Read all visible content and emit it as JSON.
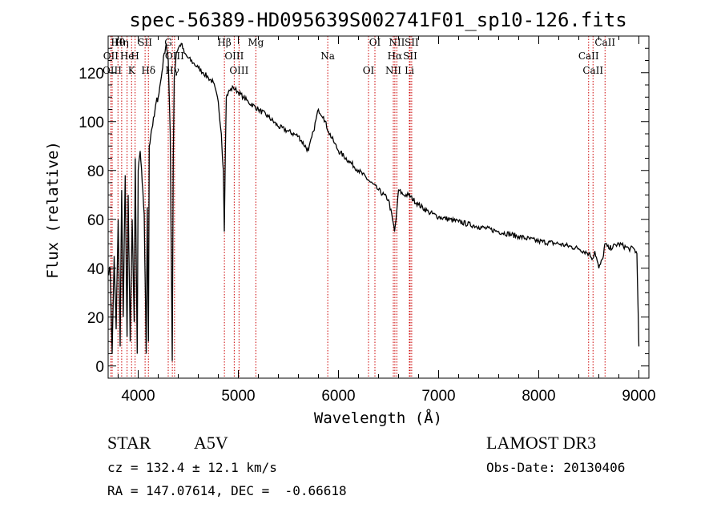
{
  "chart_data": {
    "type": "line",
    "title": "spec-56389-HD095639S002741F01_sp10-126.fits",
    "xlabel": "Wavelength (Å)",
    "ylabel": "Flux (relative)",
    "xlim": [
      3700,
      9100
    ],
    "ylim": [
      -5,
      135
    ],
    "xticks": [
      4000,
      5000,
      6000,
      7000,
      8000,
      9000
    ],
    "yticks": [
      0,
      20,
      40,
      60,
      80,
      100,
      120
    ],
    "grid": false,
    "series": [
      {
        "x": [
          3700,
          3720,
          3740,
          3760,
          3780,
          3800,
          3820,
          3835,
          3850,
          3870,
          3889,
          3900,
          3920,
          3940,
          3960,
          3970,
          3990,
          4000,
          4020,
          4040,
          4060,
          4080,
          4090,
          4102,
          4110,
          4130,
          4160,
          4180,
          4200,
          4230,
          4260,
          4280,
          4300,
          4320,
          4340,
          4350,
          4360,
          4380,
          4400,
          4430,
          4460,
          4500,
          4550,
          4600,
          4650,
          4700,
          4750,
          4800,
          4830,
          4850,
          4860,
          4870,
          4880,
          4900,
          4950,
          5000,
          5050,
          5100,
          5200,
          5300,
          5400,
          5500,
          5600,
          5700,
          5750,
          5800,
          5850,
          5900,
          5950,
          6000,
          6100,
          6200,
          6300,
          6400,
          6500,
          6540,
          6560,
          6575,
          6600,
          6650,
          6700,
          6800,
          6900,
          7000,
          7200,
          7400,
          7600,
          7800,
          8000,
          8200,
          8400,
          8500,
          8540,
          8560,
          8600,
          8640,
          8660,
          8700,
          8800,
          8900,
          8950,
          8980,
          9000
        ],
        "values": [
          38,
          40,
          5,
          45,
          15,
          60,
          8,
          72,
          20,
          78,
          12,
          70,
          10,
          60,
          18,
          85,
          5,
          80,
          88,
          75,
          62,
          5,
          65,
          10,
          90,
          96,
          102,
          108,
          110,
          118,
          128,
          132,
          125,
          95,
          2,
          85,
          118,
          128,
          130,
          132,
          128,
          126,
          124,
          122,
          120,
          118,
          116,
          108,
          95,
          80,
          55,
          88,
          110,
          112,
          114,
          112,
          110,
          108,
          105,
          102,
          98,
          96,
          94,
          88,
          96,
          105,
          102,
          96,
          92,
          88,
          84,
          80,
          76,
          72,
          68,
          60,
          55,
          60,
          72,
          70,
          70,
          66,
          63,
          61,
          59,
          57,
          55,
          53,
          51,
          50,
          48,
          46,
          44,
          47,
          40,
          44,
          50,
          48,
          50,
          48,
          48,
          46,
          8
        ]
      }
    ],
    "line_ids": [
      {
        "label": "Hθ",
        "x": 3798
      },
      {
        "label": "OII",
        "x": 3727
      },
      {
        "label": "OIII",
        "x": 3740
      },
      {
        "label": "Hη",
        "x": 3835
      },
      {
        "label": "He",
        "x": 3889
      },
      {
        "label": "K",
        "x": 3934
      },
      {
        "label": "SII",
        "x": 4069
      },
      {
        "label": "H",
        "x": 3969
      },
      {
        "label": "Hδ",
        "x": 4102
      },
      {
        "label": "G",
        "x": 4300
      },
      {
        "label": "OIII",
        "x": 4363
      },
      {
        "label": "Hγ",
        "x": 4341
      },
      {
        "label": "Hβ",
        "x": 4861
      },
      {
        "label": "OIII",
        "x": 4959
      },
      {
        "label": "OIII",
        "x": 5007
      },
      {
        "label": "Mg",
        "x": 5175
      },
      {
        "label": "Na",
        "x": 5893
      },
      {
        "label": "OI",
        "x": 6300
      },
      {
        "label": "OI",
        "x": 6364
      },
      {
        "label": "Hα",
        "x": 6563
      },
      {
        "label": "NII",
        "x": 6548
      },
      {
        "label": "NII",
        "x": 6583
      },
      {
        "label": "SII",
        "x": 6716
      },
      {
        "label": "Li",
        "x": 6708
      },
      {
        "label": "SII",
        "x": 6731
      },
      {
        "label": "CaII",
        "x": 8498
      },
      {
        "label": "CaII",
        "x": 8542
      },
      {
        "label": "CaII",
        "x": 8662
      }
    ],
    "line_color": "#cc0000",
    "series_color": "#000000"
  },
  "info": {
    "object_type": "STAR",
    "subclass": "A5V",
    "survey": "LAMOST DR3",
    "redshift": "cz = 132.4 ± 12.1 km/s",
    "obs_date": "Obs-Date: 20130406",
    "coords": "RA = 147.07614, DEC =  -0.66618"
  }
}
